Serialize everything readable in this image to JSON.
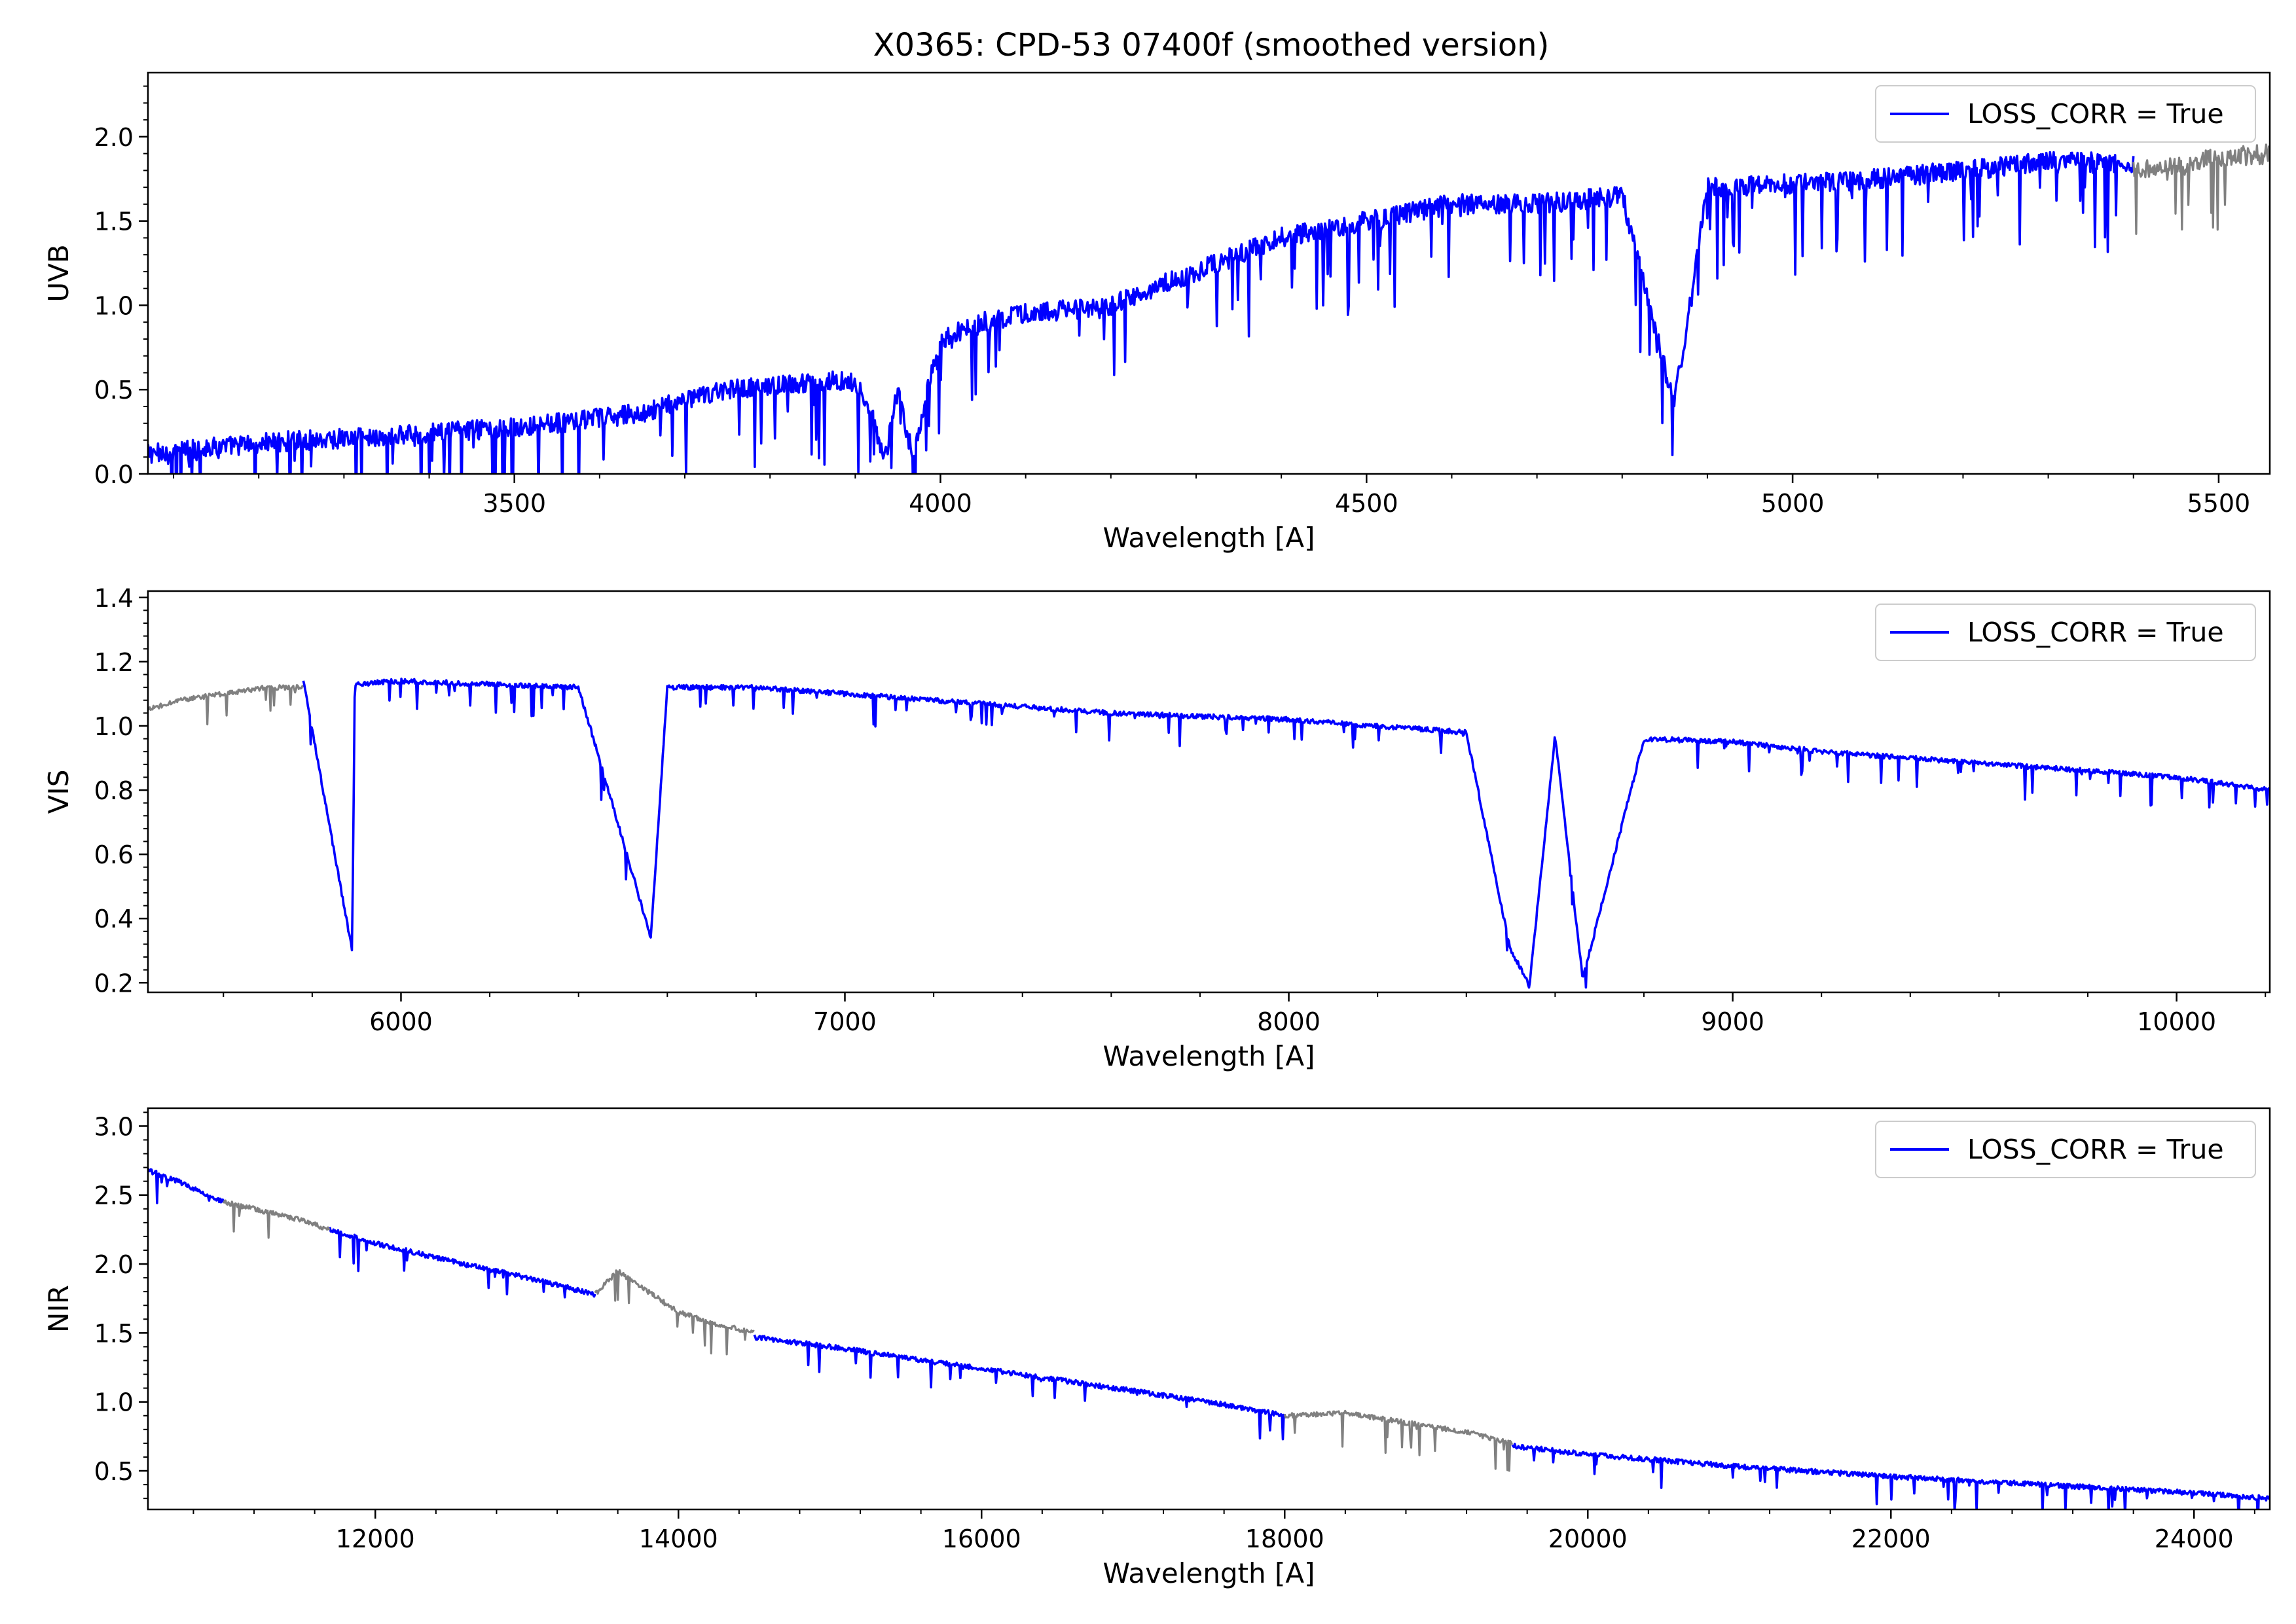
{
  "figure": {
    "title": "X0365: CPD-53 07400f (smoothed version)"
  },
  "colors": {
    "primary_series": "#0000ff",
    "masked_series": "#808080",
    "axes": "#000000",
    "background": "#ffffff"
  },
  "chart_data": [
    {
      "type": "line",
      "panel": "UVB",
      "xlabel": "Wavelength [A]",
      "ylabel": "UVB",
      "xlim": [
        3070,
        5560
      ],
      "ylim": [
        0.0,
        2.38
      ],
      "xticks": [
        3500,
        4000,
        4500,
        5000,
        5500
      ],
      "yticks": [
        0.0,
        0.5,
        1.0,
        1.5,
        2.0
      ],
      "xtick_labels": [
        "3500",
        "4000",
        "4500",
        "5000",
        "5500"
      ],
      "ytick_labels": [
        "0.0",
        "0.5",
        "1.0",
        "1.5",
        "2.0"
      ],
      "legend": {
        "position": "upper right",
        "entries": [
          "LOSS_CORR = True"
        ]
      },
      "series": [
        {
          "name": "LOSS_CORR = True",
          "color": "#0000ff",
          "style": "noisy-absorption",
          "segments": [
            {
              "x": [
                3070,
                3150,
                3250,
                3350,
                3450,
                3550,
                3650,
                3700,
                3750,
                3800,
                3850,
                3900,
                3920,
                3935,
                3950,
                3968,
                3985,
                4000,
                4050,
                4100,
                4200,
                4300,
                4400,
                4500,
                4600,
                4700,
                4800,
                4861,
                4900,
                5000,
                5100,
                5200,
                5300,
                5400
              ],
              "y": [
                0.12,
                0.16,
                0.2,
                0.22,
                0.26,
                0.3,
                0.36,
                0.44,
                0.5,
                0.52,
                0.55,
                0.55,
                0.35,
                0.08,
                0.5,
                0.08,
                0.5,
                0.8,
                0.9,
                0.95,
                1.0,
                1.2,
                1.4,
                1.5,
                1.6,
                1.6,
                1.65,
                0.4,
                1.7,
                1.72,
                1.75,
                1.8,
                1.85,
                1.85
              ]
            }
          ]
        },
        {
          "name": "",
          "color": "#808080",
          "style": "noisy-absorption",
          "segments": [
            {
              "x": [
                5400,
                5450,
                5500,
                5560
              ],
              "y": [
                1.8,
                1.82,
                1.88,
                1.9
              ]
            }
          ]
        }
      ]
    },
    {
      "type": "line",
      "panel": "VIS",
      "xlabel": "Wavelength [A]",
      "ylabel": "VIS",
      "xlim": [
        5430,
        10210
      ],
      "ylim": [
        0.17,
        1.42
      ],
      "xticks": [
        6000,
        7000,
        8000,
        9000,
        10000
      ],
      "yticks": [
        0.2,
        0.4,
        0.6,
        0.8,
        1.0,
        1.2,
        1.4
      ],
      "xtick_labels": [
        "6000",
        "7000",
        "8000",
        "9000",
        "10000"
      ],
      "ytick_labels": [
        "0.2",
        "0.4",
        "0.6",
        "0.8",
        "1.0",
        "1.2",
        "1.4"
      ],
      "legend": {
        "position": "upper right",
        "entries": [
          "LOSS_CORR = True"
        ]
      },
      "series": [
        {
          "name": "",
          "color": "#808080",
          "style": "noisy-absorption",
          "segments": [
            {
              "x": [
                5430,
                5500,
                5600,
                5700,
                5780
              ],
              "y": [
                1.05,
                1.08,
                1.1,
                1.12,
                1.12
              ]
            }
          ]
        },
        {
          "name": "LOSS_CORR = True",
          "color": "#0000ff",
          "style": "noisy-absorption",
          "segments": [
            {
              "x": [
                5780,
                5890,
                5896,
                6000,
                6200,
                6400,
                6563,
                6600,
                6800,
                7000,
                7200,
                7400,
                7600,
                7800,
                8000,
                8200,
                8400,
                8498,
                8542,
                8600,
                8662,
                8800,
                9000,
                9200,
                9400,
                9600,
                9800,
                10000,
                10210
              ],
              "y": [
                1.14,
                0.3,
                1.13,
                1.14,
                1.13,
                1.12,
                0.34,
                1.12,
                1.12,
                1.1,
                1.08,
                1.06,
                1.04,
                1.03,
                1.02,
                1.0,
                0.98,
                0.31,
                0.19,
                0.97,
                0.21,
                0.96,
                0.95,
                0.92,
                0.9,
                0.88,
                0.86,
                0.84,
                0.8
              ]
            }
          ]
        }
      ]
    },
    {
      "type": "line",
      "panel": "NIR",
      "xlabel": "Wavelength [A]",
      "ylabel": "NIR",
      "xlim": [
        10500,
        24500
      ],
      "ylim": [
        0.22,
        3.13
      ],
      "xticks": [
        12000,
        14000,
        16000,
        18000,
        20000,
        22000,
        24000
      ],
      "yticks": [
        0.5,
        1.0,
        1.5,
        2.0,
        2.5,
        3.0
      ],
      "xtick_labels": [
        "12000",
        "14000",
        "16000",
        "18000",
        "20000",
        "22000",
        "24000"
      ],
      "ytick_labels": [
        "0.5",
        "1.0",
        "1.5",
        "2.0",
        "2.5",
        "3.0"
      ],
      "legend": {
        "position": "upper right",
        "entries": [
          "LOSS_CORR = True"
        ]
      },
      "series": [
        {
          "name": "LOSS_CORR = True",
          "color": "#0000ff",
          "style": "noisy-absorption",
          "segments": [
            {
              "x": [
                10500,
                10700,
                10900,
                11000
              ],
              "y": [
                2.68,
                2.6,
                2.5,
                2.45
              ]
            },
            {
              "x": [
                11700,
                12000,
                12500,
                13000,
                13450
              ],
              "y": [
                2.25,
                2.15,
                2.02,
                1.9,
                1.78
              ]
            },
            {
              "x": [
                14500,
                15000,
                15500,
                16000,
                16500,
                17000,
                17500,
                18000
              ],
              "y": [
                1.47,
                1.4,
                1.32,
                1.24,
                1.16,
                1.08,
                1.0,
                0.9
              ]
            },
            {
              "x": [
                19500,
                20000,
                21000,
                22000,
                23000,
                24000,
                24500
              ],
              "y": [
                0.68,
                0.62,
                0.53,
                0.46,
                0.4,
                0.34,
                0.3
              ]
            }
          ]
        },
        {
          "name": "",
          "color": "#808080",
          "style": "noisy-absorption",
          "segments": [
            {
              "x": [
                11000,
                11200,
                11500,
                11700
              ],
              "y": [
                2.45,
                2.4,
                2.32,
                2.25
              ]
            },
            {
              "x": [
                13450,
                13600,
                13800,
                14000,
                14200,
                14500
              ],
              "y": [
                1.78,
                1.95,
                1.8,
                1.65,
                1.58,
                1.5
              ]
            },
            {
              "x": [
                18000,
                18400,
                18800,
                19200,
                19500
              ],
              "y": [
                0.9,
                0.92,
                0.85,
                0.78,
                0.7
              ]
            }
          ]
        }
      ]
    }
  ]
}
